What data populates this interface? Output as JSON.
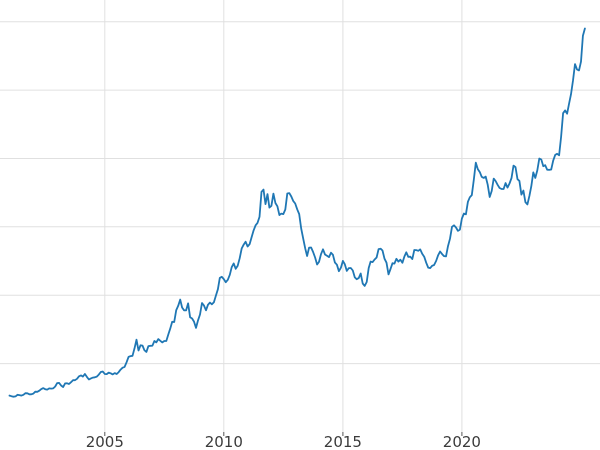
{
  "chart_data": {
    "type": "line",
    "title": "",
    "xlabel": "",
    "ylabel": "",
    "legend": false,
    "grid": true,
    "background": "#ffffff",
    "grid_color": "#e0e0e0",
    "tick_color": "#555555",
    "tick_label_color": "#3b3b3b",
    "line_color": "#1f77b4",
    "line_width": 1.8,
    "xlim": [
      2000.6,
      2025.8
    ],
    "ylim": [
      0,
      3100
    ],
    "x_ticks": [
      2005,
      2010,
      2015,
      2020
    ],
    "x_tick_labels": [
      "2005",
      "2010",
      "2015",
      "2020"
    ],
    "y_gridlines": [
      500,
      1000,
      1500,
      2000,
      2500,
      3000
    ],
    "series": [
      {
        "name": "price",
        "x_start": 2001.0,
        "x_step_years": 0.0833333,
        "values": [
          266,
          262,
          258,
          260,
          272,
          270,
          266,
          272,
          284,
          283,
          276,
          276,
          281,
          295,
          294,
          302,
          314,
          321,
          313,
          310,
          319,
          317,
          319,
          333,
          357,
          359,
          340,
          328,
          355,
          356,
          351,
          364,
          379,
          379,
          389,
          407,
          414,
          405,
          424,
          403,
          384,
          392,
          398,
          400,
          405,
          420,
          439,
          442,
          424,
          423,
          434,
          429,
          421,
          431,
          424,
          438,
          456,
          470,
          476,
          510,
          550,
          555,
          557,
          611,
          675,
          596,
          634,
          632,
          598,
          586,
          628,
          630,
          631,
          665,
          655,
          679,
          667,
          655,
          665,
          665,
          713,
          755,
          806,
          804,
          890,
          923,
          968,
          910,
          889,
          889,
          940,
          839,
          830,
          807,
          761,
          816,
          859,
          943,
          924,
          890,
          929,
          946,
          934,
          949,
          997,
          1044,
          1127,
          1135,
          1118,
          1095,
          1113,
          1149,
          1205,
          1233,
          1193,
          1216,
          1271,
          1342,
          1370,
          1391,
          1356,
          1373,
          1424,
          1474,
          1511,
          1529,
          1573,
          1756,
          1772,
          1666,
          1739,
          1641,
          1654,
          1743,
          1674,
          1650,
          1586,
          1597,
          1593,
          1627,
          1744,
          1747,
          1722,
          1688,
          1671,
          1628,
          1593,
          1487,
          1414,
          1343,
          1287,
          1348,
          1349,
          1316,
          1276,
          1225,
          1244,
          1300,
          1336,
          1298,
          1288,
          1279,
          1311,
          1296,
          1239,
          1223,
          1176,
          1201,
          1251,
          1227,
          1178,
          1198,
          1199,
          1181,
          1130,
          1117,
          1125,
          1159,
          1086,
          1068,
          1097,
          1199,
          1246,
          1242,
          1261,
          1276,
          1337,
          1340,
          1327,
          1267,
          1238,
          1152,
          1192,
          1234,
          1231,
          1266,
          1246,
          1260,
          1237,
          1283,
          1314,
          1280,
          1282,
          1264,
          1331,
          1330,
          1325,
          1335,
          1303,
          1282,
          1238,
          1202,
          1198,
          1215,
          1221,
          1250,
          1292,
          1320,
          1301,
          1286,
          1284,
          1359,
          1413,
          1500,
          1511,
          1495,
          1471,
          1480,
          1561,
          1597,
          1592,
          1683,
          1716,
          1732,
          1843,
          1969,
          1922,
          1900,
          1866,
          1858,
          1867,
          1808,
          1718,
          1762,
          1853,
          1835,
          1807,
          1784,
          1777,
          1777,
          1820,
          1787,
          1817,
          1856,
          1948,
          1937,
          1848,
          1836,
          1736,
          1765,
          1681,
          1664,
          1726,
          1797,
          1898,
          1858,
          1913,
          2000,
          1992,
          1943,
          1951,
          1918,
          1916,
          1919,
          1984,
          2026,
          2034,
          2023,
          2158,
          2331,
          2351,
          2327,
          2398,
          2470,
          2570,
          2690,
          2651,
          2644,
          2708,
          2897,
          2950
        ]
      }
    ]
  }
}
